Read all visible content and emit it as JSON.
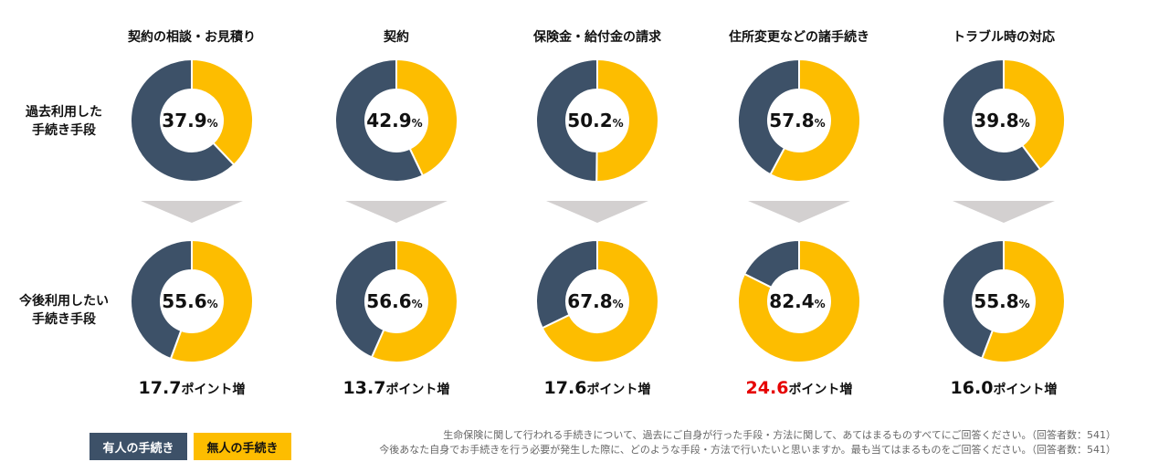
{
  "chart_data": {
    "type": "donut",
    "categories": [
      "契約の相談・お見積り",
      "契約",
      "保険金・給付金の請求",
      "住所変更などの諸手続き",
      "トラブル時の対応"
    ],
    "rows": [
      {
        "label_lines": [
          "過去利用した",
          "手続き手段"
        ],
        "values": [
          37.9,
          42.9,
          50.2,
          57.8,
          39.8
        ],
        "labels": [
          "37.9",
          "42.9",
          "50.2",
          "57.8",
          "39.8"
        ]
      },
      {
        "label_lines": [
          "今後利用したい",
          "手続き手段"
        ],
        "values": [
          55.6,
          56.6,
          67.8,
          82.4,
          55.8
        ],
        "labels": [
          "55.6",
          "56.6",
          "67.8",
          "82.4",
          "55.8"
        ]
      }
    ],
    "percent_sign": "%",
    "increase": [
      "17.7",
      "13.7",
      "17.6",
      "24.6",
      "16.0"
    ],
    "increase_suffix": "ポイント増",
    "highlight_index": 3,
    "series": [
      {
        "name": "有人の手続き",
        "color": "#3d5168"
      },
      {
        "name": "無人の手続き",
        "color": "#fdbd00"
      }
    ],
    "highlight_color": "#e60000",
    "arrow_color": "#d3d0d0"
  },
  "notes": [
    "生命保険に関して行われる手続きについて、過去にご自身が行った手段・方法に関して、あてはまるものすべてにご回答ください。（回答者数：541）",
    "今後あなた自身でお手続きを行う必要が発生した際に、どのような手段・方法で行いたいと思いますか。最も当てはまるものをご回答ください。（回答者数：541）"
  ]
}
